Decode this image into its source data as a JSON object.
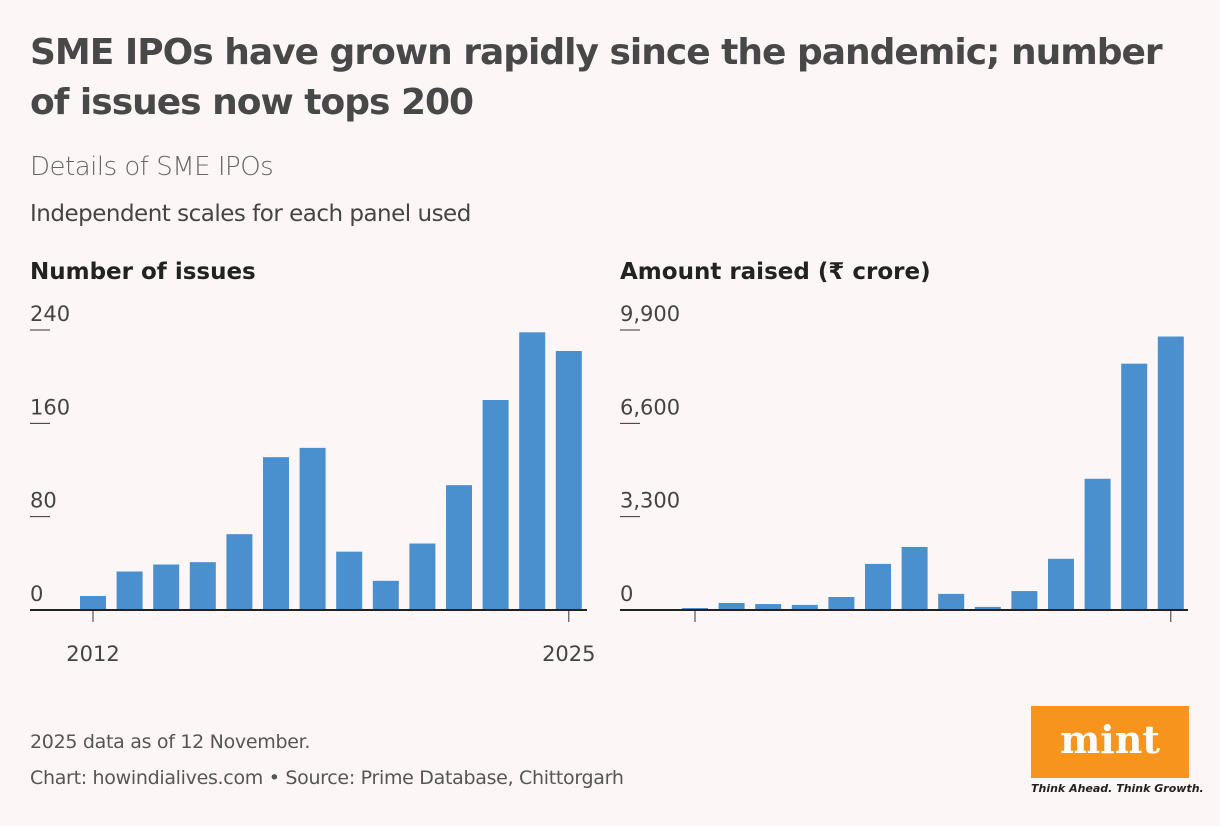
{
  "title": "SME IPOs have grown rapidly since the pandemic; number of issues now tops 200",
  "subtitle": "Details of SME IPOs",
  "note_top": "Independent scales for each panel used",
  "chart_data": [
    {
      "type": "bar",
      "title": "Number of issues",
      "categories": [
        "2012",
        null,
        null,
        null,
        null,
        null,
        null,
        null,
        null,
        null,
        null,
        null,
        null,
        "2025"
      ],
      "values": [
        12,
        33,
        39,
        41,
        65,
        131,
        139,
        50,
        25,
        57,
        107,
        180,
        238,
        222
      ],
      "color": "#4a90cf",
      "ylim": [
        0,
        240
      ],
      "yticks": [
        0,
        80,
        160,
        240
      ]
    },
    {
      "type": "bar",
      "title": "Amount raised (₹ crore)",
      "categories": [
        null,
        null,
        null,
        null,
        null,
        null,
        null,
        null,
        null,
        null,
        null,
        null,
        null,
        null
      ],
      "values": [
        70,
        250,
        210,
        180,
        460,
        1630,
        2230,
        570,
        110,
        670,
        1810,
        4640,
        8710,
        9670
      ],
      "color": "#4a90cf",
      "ylim": [
        0,
        9900
      ],
      "yticks": [
        0,
        {
          "value": 3300,
          "label": "3,300"
        },
        {
          "value": 6600,
          "label": "6,600"
        },
        {
          "value": 9900,
          "label": "9,900"
        }
      ]
    }
  ],
  "footnote": "2025 data as of 12 November.",
  "source": "Chart: howindialives.com • Source: Prime Database, Chittorgarh",
  "logo": {
    "name": "mint",
    "tagline": "Think Ahead. Think Growth."
  }
}
